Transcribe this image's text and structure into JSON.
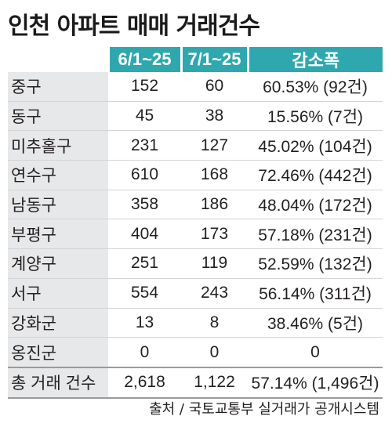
{
  "title": "인천 아파트 매매 거래건수",
  "source": "출처 / 국토교통부 실거래가 공개시스템",
  "colors": {
    "header": "#2ea8ae",
    "label_col": "#e7e8e9"
  },
  "chart_data": {
    "type": "table",
    "title": "인천 아파트 매매 거래건수",
    "columns": [
      "",
      "6/1~25",
      "7/1~25",
      "감소폭"
    ],
    "rows": [
      [
        "중구",
        "152",
        "60",
        "60.53% (92건)"
      ],
      [
        "동구",
        "45",
        "38",
        "15.56% (7건)"
      ],
      [
        "미추홀구",
        "231",
        "127",
        "45.02% (104건)"
      ],
      [
        "연수구",
        "610",
        "168",
        "72.46% (442건)"
      ],
      [
        "남동구",
        "358",
        "186",
        "48.04% (172건)"
      ],
      [
        "부평구",
        "404",
        "173",
        "57.18% (231건)"
      ],
      [
        "계양구",
        "251",
        "119",
        "52.59% (132건)"
      ],
      [
        "서구",
        "554",
        "243",
        "56.14% (311건)"
      ],
      [
        "강화군",
        "13",
        "8",
        "38.46% (5건)"
      ],
      [
        "옹진군",
        "0",
        "0",
        "0"
      ]
    ],
    "total": [
      "총 거래 건수",
      "2,618",
      "1,122",
      "57.14% (1,496건)"
    ]
  }
}
